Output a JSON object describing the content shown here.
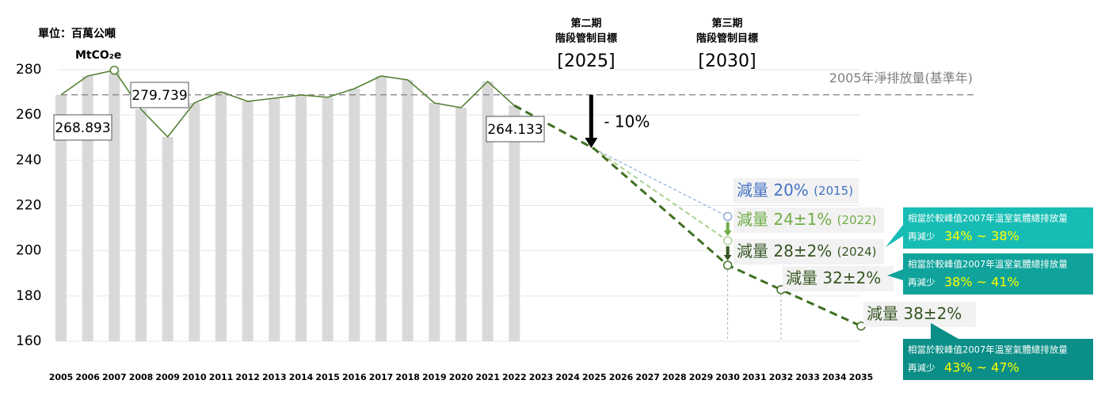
{
  "chart_data": {
    "type": "bar-line",
    "unit": [
      "單位：百萬公噸",
      "MtCO₂e"
    ],
    "xlim": [
      2005,
      2035
    ],
    "xticks": [
      2005,
      2006,
      2007,
      2008,
      2009,
      2010,
      2011,
      2012,
      2013,
      2014,
      2015,
      2016,
      2017,
      2018,
      2019,
      2020,
      2021,
      2022,
      2023,
      2024,
      2025,
      2026,
      2027,
      2028,
      2029,
      2030,
      2031,
      2032,
      2033,
      2034,
      2035
    ],
    "ylim": [
      160,
      280
    ],
    "yticks": [
      160,
      180,
      200,
      220,
      240,
      260,
      280
    ],
    "grid": true,
    "series": [
      {
        "type": "bar",
        "color": "#d9d9d9",
        "x": [
          2005,
          2006,
          2007,
          2008,
          2009,
          2010,
          2011,
          2012,
          2013,
          2014,
          2015,
          2016,
          2017,
          2018,
          2019,
          2020,
          2021,
          2022
        ],
        "values": [
          268.893,
          277.2,
          279.739,
          262.5,
          250.3,
          265.3,
          270.2,
          266.0,
          267.4,
          268.8,
          267.8,
          271.6,
          277.2,
          275.5,
          265.3,
          263.2,
          274.8,
          264.133
        ]
      },
      {
        "type": "line",
        "color": "#548235",
        "x": [
          2005,
          2006,
          2007,
          2008,
          2009,
          2010,
          2011,
          2012,
          2013,
          2014,
          2015,
          2016,
          2017,
          2018,
          2019,
          2020,
          2021,
          2022
        ],
        "values": [
          268.893,
          277.2,
          279.739,
          262.5,
          250.3,
          265.3,
          270.2,
          266.0,
          267.4,
          268.8,
          267.8,
          271.6,
          277.2,
          275.5,
          265.3,
          263.2,
          274.8,
          264.133
        ],
        "value_labels": [
          "268.893",
          null,
          "279.739",
          null,
          null,
          null,
          null,
          null,
          null,
          null,
          null,
          null,
          null,
          null,
          null,
          null,
          null,
          "264.133"
        ]
      },
      {
        "type": "line",
        "dashed": true,
        "color": "#3f6f22",
        "x": [
          2022,
          2025,
          2030,
          2032,
          2035
        ],
        "values": [
          264.133,
          245,
          193.6,
          182.8,
          166.7
        ]
      },
      {
        "type": "line",
        "dashed": true,
        "color": "#a9d18e",
        "x": [
          2025,
          2030
        ],
        "values": [
          245,
          204.4
        ]
      },
      {
        "type": "line",
        "dashed": true,
        "color": "#8faadc",
        "x": [
          2025,
          2030
        ],
        "values": [
          245,
          215.1
        ]
      }
    ],
    "baseline": {
      "value": 268.893,
      "label": "2005年淨排放量(基準年)",
      "color": "#7f7f7f"
    },
    "phases": [
      {
        "title": [
          "第二期",
          "階段管制目標"
        ],
        "year": "[2025]"
      },
      {
        "title": [
          "第三期",
          "階段管制目標"
        ],
        "year": "[2030]"
      }
    ],
    "reduction_note": "- 10%",
    "targets": [
      {
        "label": "減量 20%",
        "note": "(2015)",
        "color": "#4472c4"
      },
      {
        "label": "減量 24±1%",
        "note": "(2022)",
        "color": "#70ad47"
      },
      {
        "label": "減量 28±2%",
        "note": "(2024)",
        "color": "#375623"
      },
      {
        "label": "減量 32±2%",
        "color": "#375623"
      },
      {
        "label": "減量 38±2%",
        "color": "#375623"
      }
    ],
    "callouts": [
      {
        "text": "相當於較峰值2007年溫室氣體總排放量",
        "prefix": "再減少",
        "range": "34% ~ 38%",
        "color": "#17bdb5"
      },
      {
        "text": "相當於較峰值2007年溫室氣體總排放量",
        "prefix": "再減少",
        "range": "38% ~ 41%",
        "color": "#10a39b"
      },
      {
        "text": "相當於較峰值2007年溫室氣體總排放量",
        "prefix": "再減少",
        "range": "43% ~ 47%",
        "color": "#0a8e87"
      }
    ]
  }
}
